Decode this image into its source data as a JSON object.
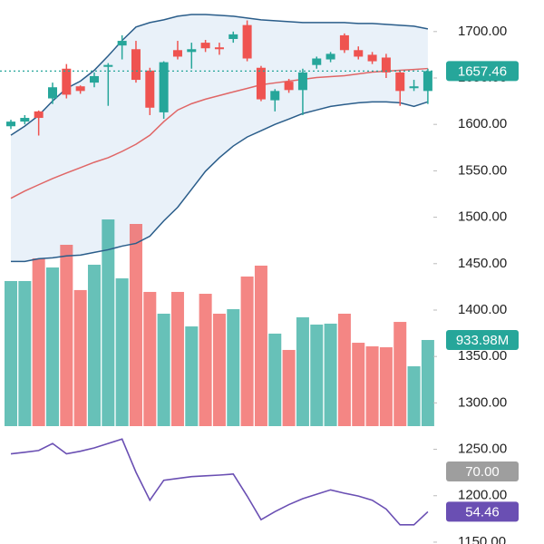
{
  "chart_data": {
    "type": "candlestick",
    "open": [
      1598,
      1603,
      1614,
      1628,
      1660,
      1641,
      1645,
      1662,
      1685,
      1681,
      1658,
      1613,
      1680,
      1678,
      1688,
      1683,
      1692,
      1707,
      1661,
      1626,
      1646,
      1637,
      1664,
      1670,
      1696,
      1680,
      1675,
      1672,
      1656,
      1639,
      1636
    ],
    "high": [
      1605,
      1610,
      1615,
      1645,
      1665,
      1642,
      1656,
      1666,
      1696,
      1690,
      1661,
      1668,
      1690,
      1688,
      1691,
      1688,
      1700,
      1712,
      1663,
      1638,
      1649,
      1660,
      1673,
      1678,
      1698,
      1684,
      1678,
      1676,
      1658,
      1648,
      1660
    ],
    "low": [
      1595,
      1600,
      1588,
      1622,
      1628,
      1633,
      1640,
      1620,
      1670,
      1645,
      1610,
      1606,
      1670,
      1660,
      1678,
      1675,
      1688,
      1668,
      1625,
      1614,
      1634,
      1610,
      1660,
      1667,
      1677,
      1670,
      1665,
      1650,
      1620,
      1636,
      1622
    ],
    "close": [
      1603,
      1607,
      1607,
      1640,
      1632,
      1636,
      1652,
      1664,
      1690,
      1648,
      1618,
      1667,
      1673,
      1681,
      1682,
      1681,
      1697,
      1671,
      1627,
      1636,
      1637,
      1656,
      1671,
      1676,
      1680,
      1673,
      1668,
      1656,
      1636,
      1641,
      1657.46
    ],
    "up_color": "#26a69a",
    "down_color": "#ef5350",
    "ylim": [
      1148,
      1734
    ],
    "yticks": [
      {
        "value": 1150,
        "label": "1150.00"
      },
      {
        "value": 1200,
        "label": "1200.00"
      },
      {
        "value": 1250,
        "label": "1250.00"
      },
      {
        "value": 1300,
        "label": "1300.00"
      },
      {
        "value": 1350,
        "label": "1350.00"
      },
      {
        "value": 1400,
        "label": "1400.00"
      },
      {
        "value": 1450,
        "label": "1450.00"
      },
      {
        "value": 1500,
        "label": "1500.00"
      },
      {
        "value": 1550,
        "label": "1550.00"
      },
      {
        "value": 1600,
        "label": "1600.00"
      },
      {
        "value": 1650,
        "label": "1650.00"
      },
      {
        "value": 1700,
        "label": "1700.00"
      }
    ],
    "lines": [
      {
        "color": "#2a5d8a",
        "values": [
          1588.3,
          1598.1,
          1609.7,
          1625.2,
          1638.8,
          1646.6,
          1658.3,
          1673.8,
          1690.3,
          1704.9,
          1709.7,
          1712.6,
          1716.5,
          1718.4,
          1718.4,
          1717.5,
          1716.5,
          1714.6,
          1712.6,
          1711.7,
          1710.7,
          1709.7,
          1709.7,
          1709.7,
          1709.7,
          1708.7,
          1708.7,
          1707.8,
          1706.8,
          1705.8,
          1702.9
        ]
      },
      {
        "color": "#2a5d8a",
        "values": [
          1452.4,
          1452.4,
          1455.3,
          1456.3,
          1458.3,
          1459.2,
          1462.1,
          1465,
          1468.9,
          1471.8,
          1479.6,
          1496.1,
          1510.7,
          1530.1,
          1549.5,
          1564.1,
          1576.7,
          1586.4,
          1593.2,
          1600,
          1605.8,
          1611.7,
          1615.5,
          1619.4,
          1621.4,
          1623.3,
          1624.3,
          1624.3,
          1623.3,
          1619.4,
          1624.3
        ]
      },
      {
        "color": "#e06666",
        "values": [
          1520.4,
          1528.2,
          1535,
          1541.7,
          1547.6,
          1553.4,
          1559.2,
          1564.1,
          1570.9,
          1578.6,
          1588.3,
          1602.9,
          1615.5,
          1622.3,
          1627.2,
          1631.1,
          1635,
          1638.8,
          1642.7,
          1644.7,
          1646.6,
          1648.5,
          1650.5,
          1651.5,
          1652.4,
          1654.4,
          1656.3,
          1657.3,
          1658.3,
          1659.2,
          1660.2
        ]
      }
    ],
    "volume": {
      "values": [
        1573,
        1573,
        1819,
        1720,
        1966,
        1475,
        1750,
        2241,
        1602,
        2192,
        1455,
        1219,
        1455,
        1081,
        1435,
        1219,
        1268,
        1622,
        1740,
        1003,
        826,
        1180,
        1101,
        1111,
        1219,
        904,
        865,
        855,
        1130,
        649,
        933.98
      ],
      "ylim": [
        0,
        4620
      ],
      "last_label": "933.98M"
    },
    "rsi": {
      "values": [
        76.8,
        77.4,
        78.1,
        80.8,
        76.8,
        77.8,
        79.1,
        80.8,
        82.5,
        69.7,
        58.9,
        66.6,
        67.3,
        68,
        68.3,
        68.6,
        69,
        60.5,
        51.4,
        54.5,
        57.2,
        59.5,
        61.2,
        62.9,
        61.6,
        60.5,
        58.9,
        55.5,
        49.4,
        49.4,
        54.46
      ],
      "ylim": [
        42,
        84
      ],
      "color": "#6a4fb3",
      "level": {
        "value": 70,
        "label": "70.00"
      }
    }
  }
}
